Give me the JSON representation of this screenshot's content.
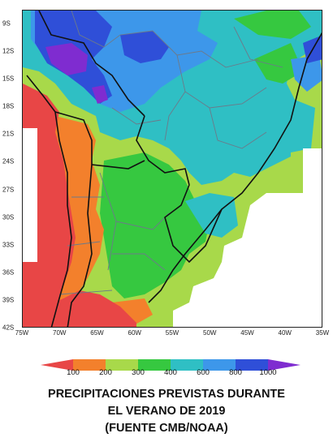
{
  "map": {
    "lat_labels": [
      "9S",
      "12S",
      "15S",
      "18S",
      "21S",
      "24S",
      "27S",
      "30S",
      "33S",
      "36S",
      "39S",
      "42S"
    ],
    "lon_labels": [
      "75W",
      "70W",
      "65W",
      "60W",
      "55W",
      "50W",
      "45W",
      "40W",
      "35W"
    ],
    "extent": {
      "lon": [
        -75,
        -35
      ],
      "lat": [
        -42,
        -7.5
      ]
    },
    "colors": {
      "lt100": "#e84646",
      "c100_200": "#f3802c",
      "c200_300": "#a8d94a",
      "c300_400": "#36c840",
      "c400_600": "#2fbfc4",
      "c600_800": "#3d97ea",
      "c800_1000": "#2f4fd8",
      "gt1000": "#7f2cd0",
      "no_data": "#ffffff"
    }
  },
  "colorbar": {
    "ticks": [
      "100",
      "200",
      "300",
      "400",
      "600",
      "800",
      "1000"
    ],
    "colors": [
      "#e84646",
      "#f3802c",
      "#a8d94a",
      "#36c840",
      "#2fbfc4",
      "#3d97ea",
      "#2f4fd8",
      "#7f2cd0"
    ]
  },
  "caption": {
    "line1": "PRECIPITACIONES PREVISTAS DURANTE",
    "line2": "EL VERANO DE 2019",
    "line3": "(FUENTE CMB/NOAA)"
  }
}
